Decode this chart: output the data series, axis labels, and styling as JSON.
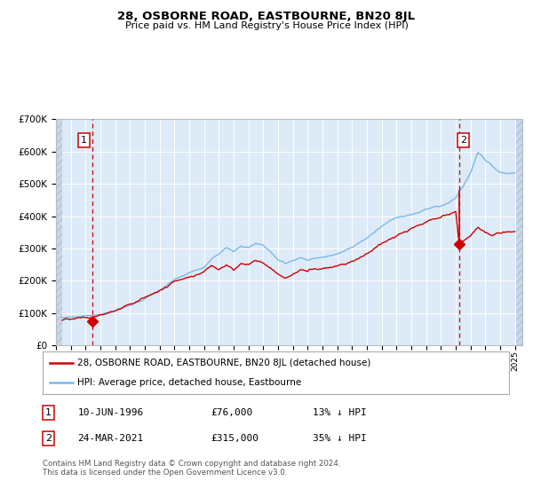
{
  "title": "28, OSBORNE ROAD, EASTBOURNE, BN20 8JL",
  "subtitle": "Price paid vs. HM Land Registry's House Price Index (HPI)",
  "x_start_year": 1994,
  "x_end_year": 2025,
  "y_min": 0,
  "y_max": 700000,
  "y_ticks": [
    0,
    100000,
    200000,
    300000,
    400000,
    500000,
    600000,
    700000
  ],
  "sale1_year": 1996.44,
  "sale1_price": 76000,
  "sale1_label": "1",
  "sale1_date": "10-JUN-1996",
  "sale1_pct": "13%",
  "sale2_year": 2021.23,
  "sale2_price": 315000,
  "sale2_label": "2",
  "sale2_date": "24-MAR-2021",
  "sale2_pct": "35%",
  "hpi_color": "#7ab8e8",
  "price_color": "#cc0000",
  "sale_dot_color": "#cc0000",
  "vline_color": "#cc0000",
  "background_color": "#ddeaf7",
  "hatch_color": "#c8d8ea",
  "grid_color": "#ffffff",
  "legend_label_price": "28, OSBORNE ROAD, EASTBOURNE, BN20 8JL (detached house)",
  "legend_label_hpi": "HPI: Average price, detached house, Eastbourne",
  "footer": "Contains HM Land Registry data © Crown copyright and database right 2024.\nThis data is licensed under the Open Government Licence v3.0."
}
